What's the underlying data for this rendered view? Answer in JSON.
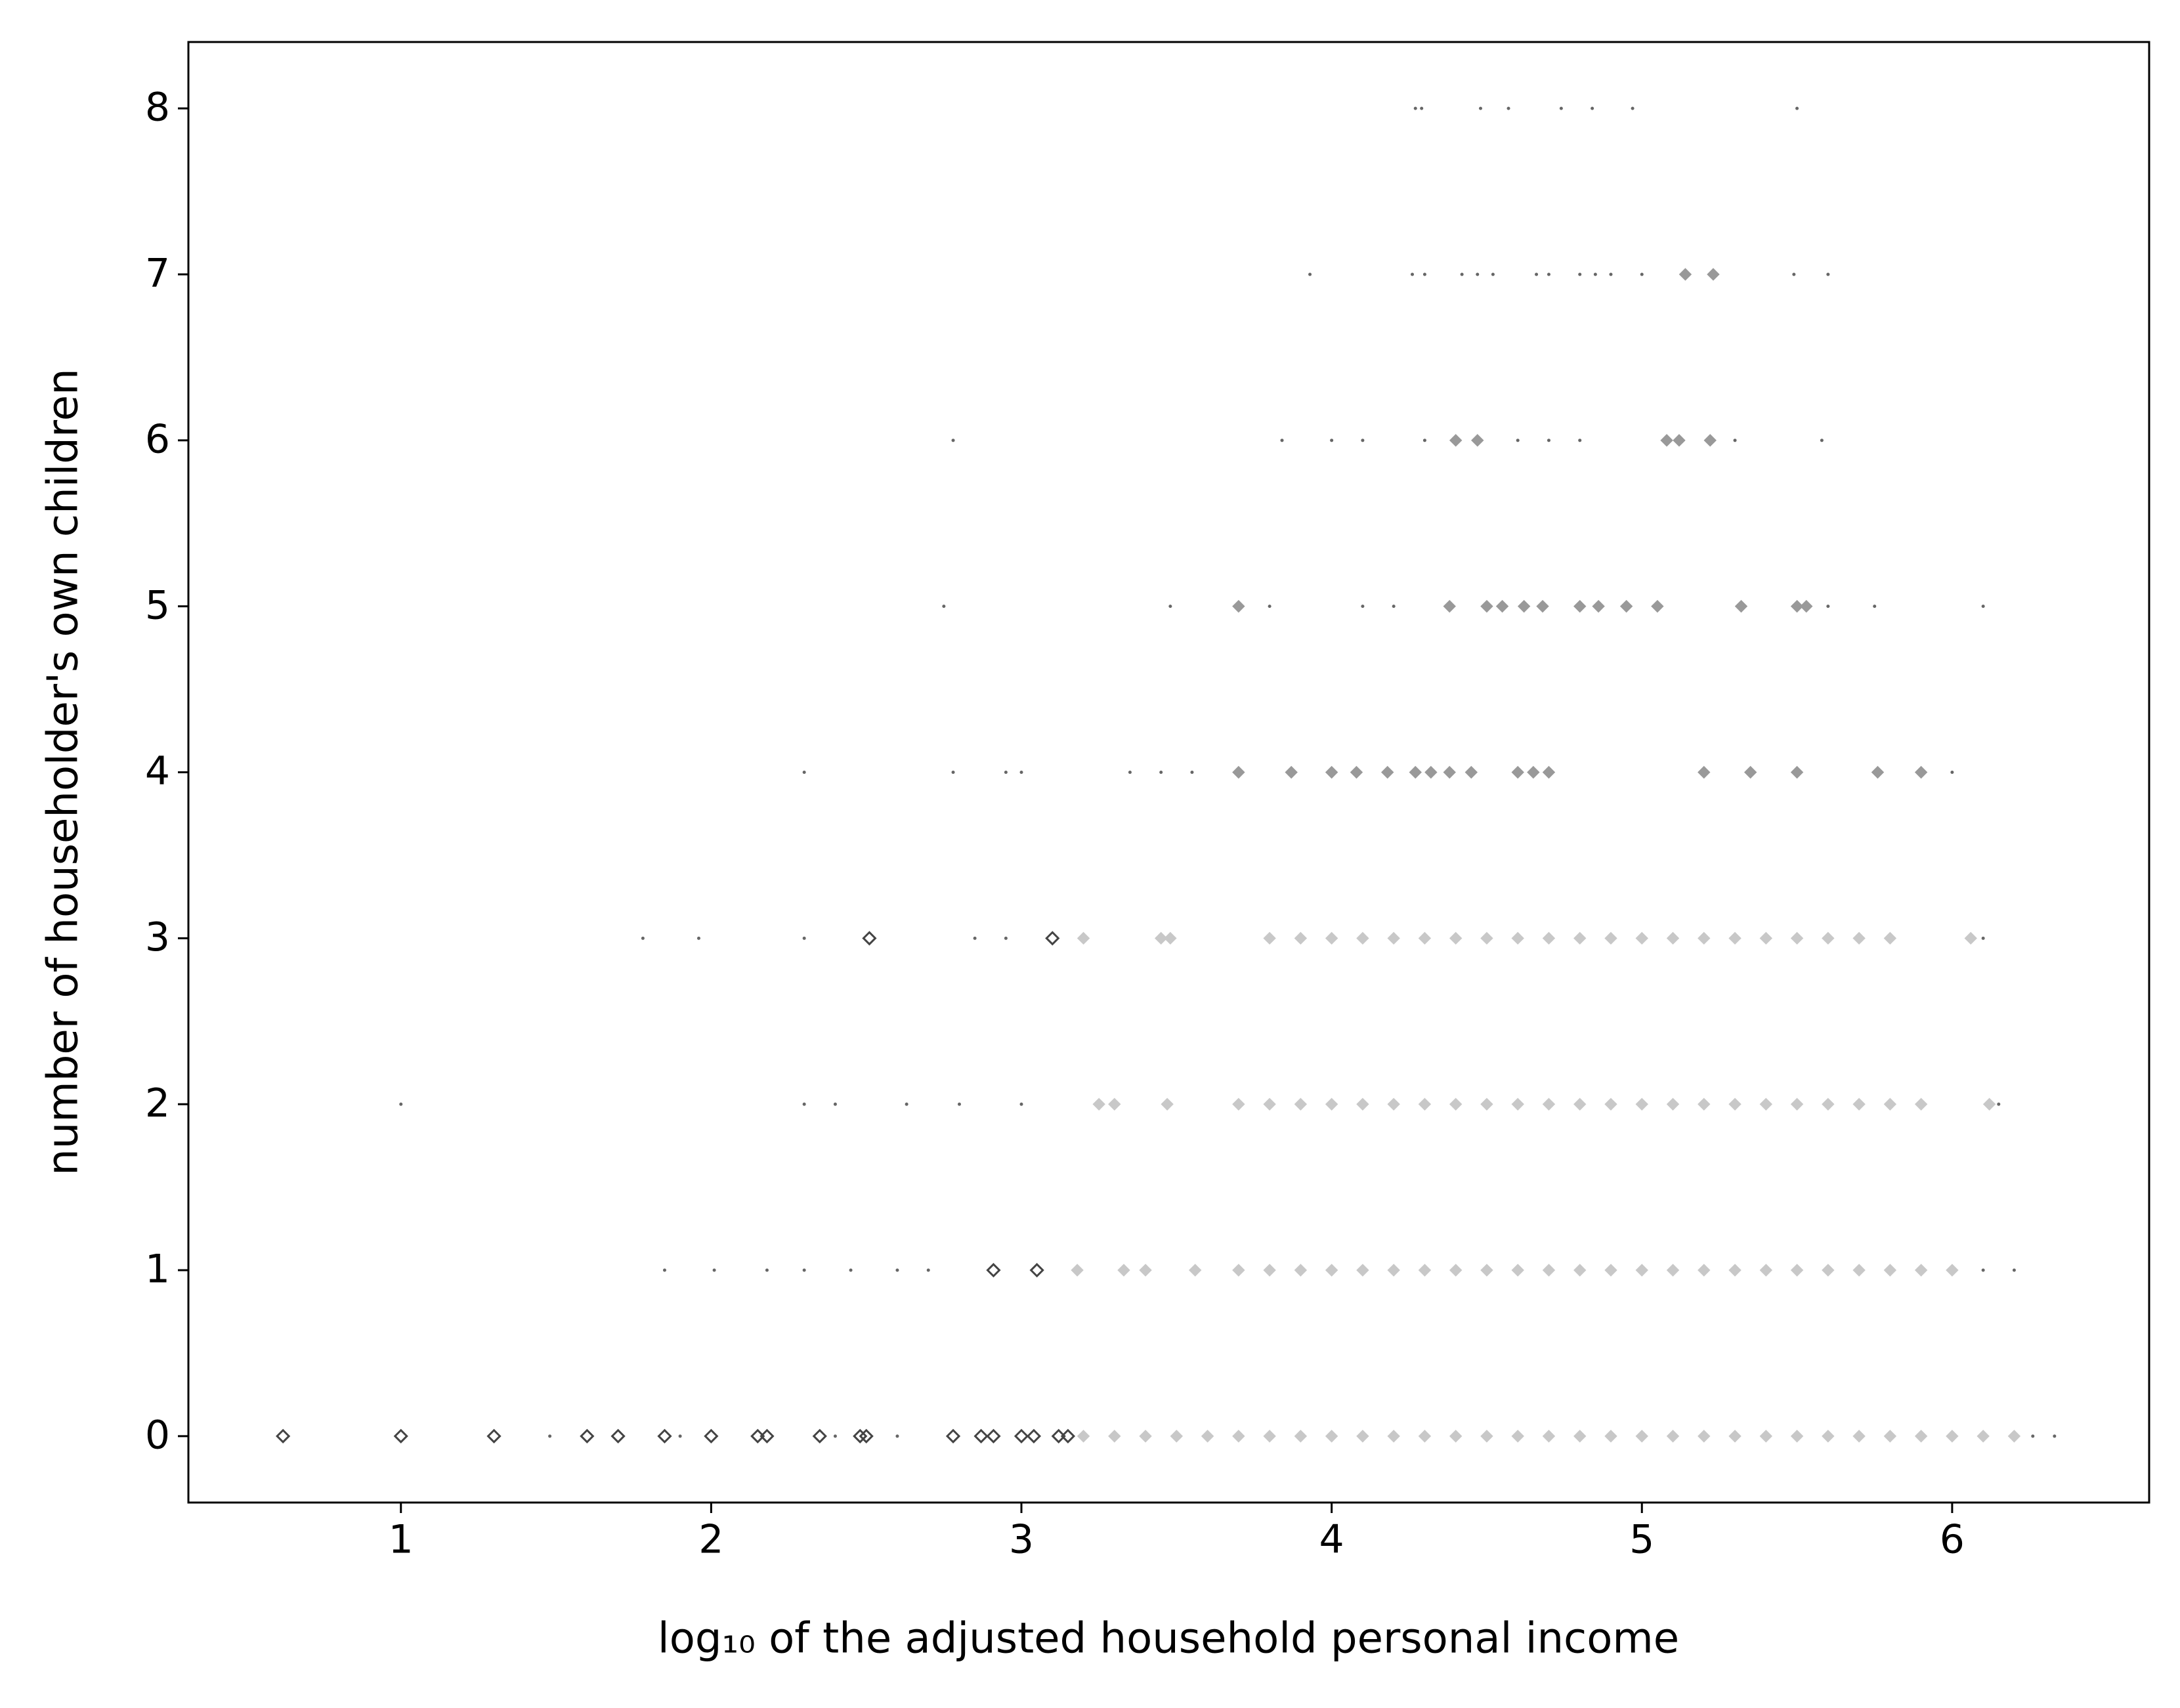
{
  "chart_data": {
    "type": "scatter",
    "xlabel": "log₁₀ of the adjusted household personal income",
    "ylabel": "number of householder's own children",
    "xlim": [
      0.315,
      6.635
    ],
    "ylim": [
      -0.4,
      8.4
    ],
    "xticks": [
      1,
      2,
      3,
      4,
      5,
      6
    ],
    "yticks": [
      0,
      1,
      2,
      3,
      4,
      5,
      6,
      7,
      8
    ],
    "series": [
      {
        "color": "#c8c8c8",
        "marker": "diamond",
        "filled": true,
        "x": [
          3.2,
          3.3,
          3.4,
          3.5,
          3.6,
          3.7,
          3.8,
          3.9,
          4.0,
          4.1,
          4.2,
          4.3,
          4.4,
          4.5,
          4.6,
          4.7,
          4.8,
          4.9,
          5.0,
          5.1,
          5.2,
          5.3,
          5.4,
          5.5,
          5.6,
          5.7,
          5.8,
          5.9,
          6.0,
          6.1,
          6.2,
          3.18,
          3.33,
          3.4,
          3.56,
          3.7,
          3.8,
          3.9,
          4.0,
          4.1,
          4.2,
          4.3,
          4.4,
          4.5,
          4.6,
          4.7,
          4.8,
          4.9,
          5.0,
          5.1,
          5.2,
          5.3,
          5.4,
          5.5,
          5.6,
          5.7,
          5.8,
          5.9,
          6.0,
          3.25,
          3.3,
          3.47,
          3.7,
          3.8,
          3.9,
          4.0,
          4.1,
          4.2,
          4.3,
          4.4,
          4.5,
          4.6,
          4.7,
          4.8,
          4.9,
          5.0,
          5.1,
          5.2,
          5.3,
          5.4,
          5.5,
          5.6,
          5.7,
          5.8,
          5.9,
          6.12,
          3.2,
          3.45,
          3.48,
          3.8,
          3.9,
          4.0,
          4.1,
          4.2,
          4.3,
          4.4,
          4.5,
          4.6,
          4.7,
          4.8,
          4.9,
          5.0,
          5.1,
          5.2,
          5.3,
          5.4,
          5.5,
          5.6,
          5.7,
          5.8,
          6.06
        ],
        "values": [
          0,
          0,
          0,
          0,
          0,
          0,
          0,
          0,
          0,
          0,
          0,
          0,
          0,
          0,
          0,
          0,
          0,
          0,
          0,
          0,
          0,
          0,
          0,
          0,
          0,
          0,
          0,
          0,
          0,
          0,
          0,
          1,
          1,
          1,
          1,
          1,
          1,
          1,
          1,
          1,
          1,
          1,
          1,
          1,
          1,
          1,
          1,
          1,
          1,
          1,
          1,
          1,
          1,
          1,
          1,
          1,
          1,
          1,
          1,
          2,
          2,
          2,
          2,
          2,
          2,
          2,
          2,
          2,
          2,
          2,
          2,
          2,
          2,
          2,
          2,
          2,
          2,
          2,
          2,
          2,
          2,
          2,
          2,
          2,
          2,
          2,
          3,
          3,
          3,
          3,
          3,
          3,
          3,
          3,
          3,
          3,
          3,
          3,
          3,
          3,
          3,
          3,
          3,
          3,
          3,
          3,
          3,
          3,
          3,
          3,
          3
        ]
      },
      {
        "color": "#999999",
        "marker": "diamond",
        "filled": true,
        "x": [
          3.7,
          3.87,
          4.0,
          4.08,
          4.18,
          4.27,
          4.32,
          4.38,
          4.45,
          4.6,
          4.65,
          4.7,
          5.2,
          5.35,
          5.5,
          5.76,
          5.9,
          3.7,
          4.38,
          4.5,
          4.55,
          4.62,
          4.68,
          4.8,
          4.86,
          4.95,
          5.05,
          5.32,
          5.5,
          5.53,
          4.4,
          4.47,
          5.08,
          5.12,
          5.22,
          5.14,
          5.23
        ],
        "values": [
          4,
          4,
          4,
          4,
          4,
          4,
          4,
          4,
          4,
          4,
          4,
          4,
          4,
          4,
          4,
          4,
          4,
          5,
          5,
          5,
          5,
          5,
          5,
          5,
          5,
          5,
          5,
          5,
          5,
          5,
          6,
          6,
          6,
          6,
          6,
          7,
          7
        ]
      },
      {
        "color": "#444444",
        "marker": "diamond",
        "filled": false,
        "x": [
          0.62,
          1.0,
          1.3,
          1.6,
          1.7,
          1.85,
          2.0,
          2.15,
          2.18,
          2.35,
          2.48,
          2.5,
          2.78,
          2.87,
          2.91,
          3.0,
          3.04,
          3.12,
          3.15,
          2.91,
          3.05,
          2.51,
          3.1
        ],
        "values": [
          0,
          0,
          0,
          0,
          0,
          0,
          0,
          0,
          0,
          0,
          0,
          0,
          0,
          0,
          0,
          0,
          0,
          0,
          0,
          1,
          1,
          3,
          3
        ]
      },
      {
        "color": "#666666",
        "marker": "dot",
        "filled": true,
        "x": [
          4.27,
          4.29,
          4.48,
          4.57,
          4.74,
          4.84,
          4.97,
          5.5,
          3.93,
          4.26,
          4.3,
          4.42,
          4.47,
          4.52,
          4.66,
          4.7,
          4.8,
          4.85,
          4.9,
          5.0,
          5.49,
          5.6,
          2.78,
          3.84,
          4.0,
          4.1,
          4.3,
          4.6,
          4.7,
          4.8,
          5.3,
          5.58,
          2.75,
          3.48,
          3.8,
          4.1,
          4.2,
          5.6,
          5.75,
          6.1,
          2.3,
          2.78,
          2.95,
          3.0,
          3.35,
          3.45,
          3.55,
          6.0,
          1.78,
          1.96,
          2.3,
          2.85,
          2.95,
          6.1,
          1.0,
          2.3,
          2.4,
          2.63,
          2.8,
          3.0,
          6.15,
          1.85,
          2.01,
          2.18,
          2.3,
          2.45,
          2.6,
          2.7,
          6.1,
          6.2,
          1.48,
          1.9,
          2.4,
          2.6,
          6.26,
          6.33
        ],
        "values": [
          8,
          8,
          8,
          8,
          8,
          8,
          8,
          8,
          7,
          7,
          7,
          7,
          7,
          7,
          7,
          7,
          7,
          7,
          7,
          7,
          7,
          7,
          6,
          6,
          6,
          6,
          6,
          6,
          6,
          6,
          6,
          6,
          5,
          5,
          5,
          5,
          5,
          5,
          5,
          5,
          4,
          4,
          4,
          4,
          4,
          4,
          4,
          4,
          3,
          3,
          3,
          3,
          3,
          3,
          2,
          2,
          2,
          2,
          2,
          2,
          2,
          1,
          1,
          1,
          1,
          1,
          1,
          1,
          1,
          1,
          0,
          0,
          0,
          0,
          0,
          0
        ]
      }
    ]
  }
}
